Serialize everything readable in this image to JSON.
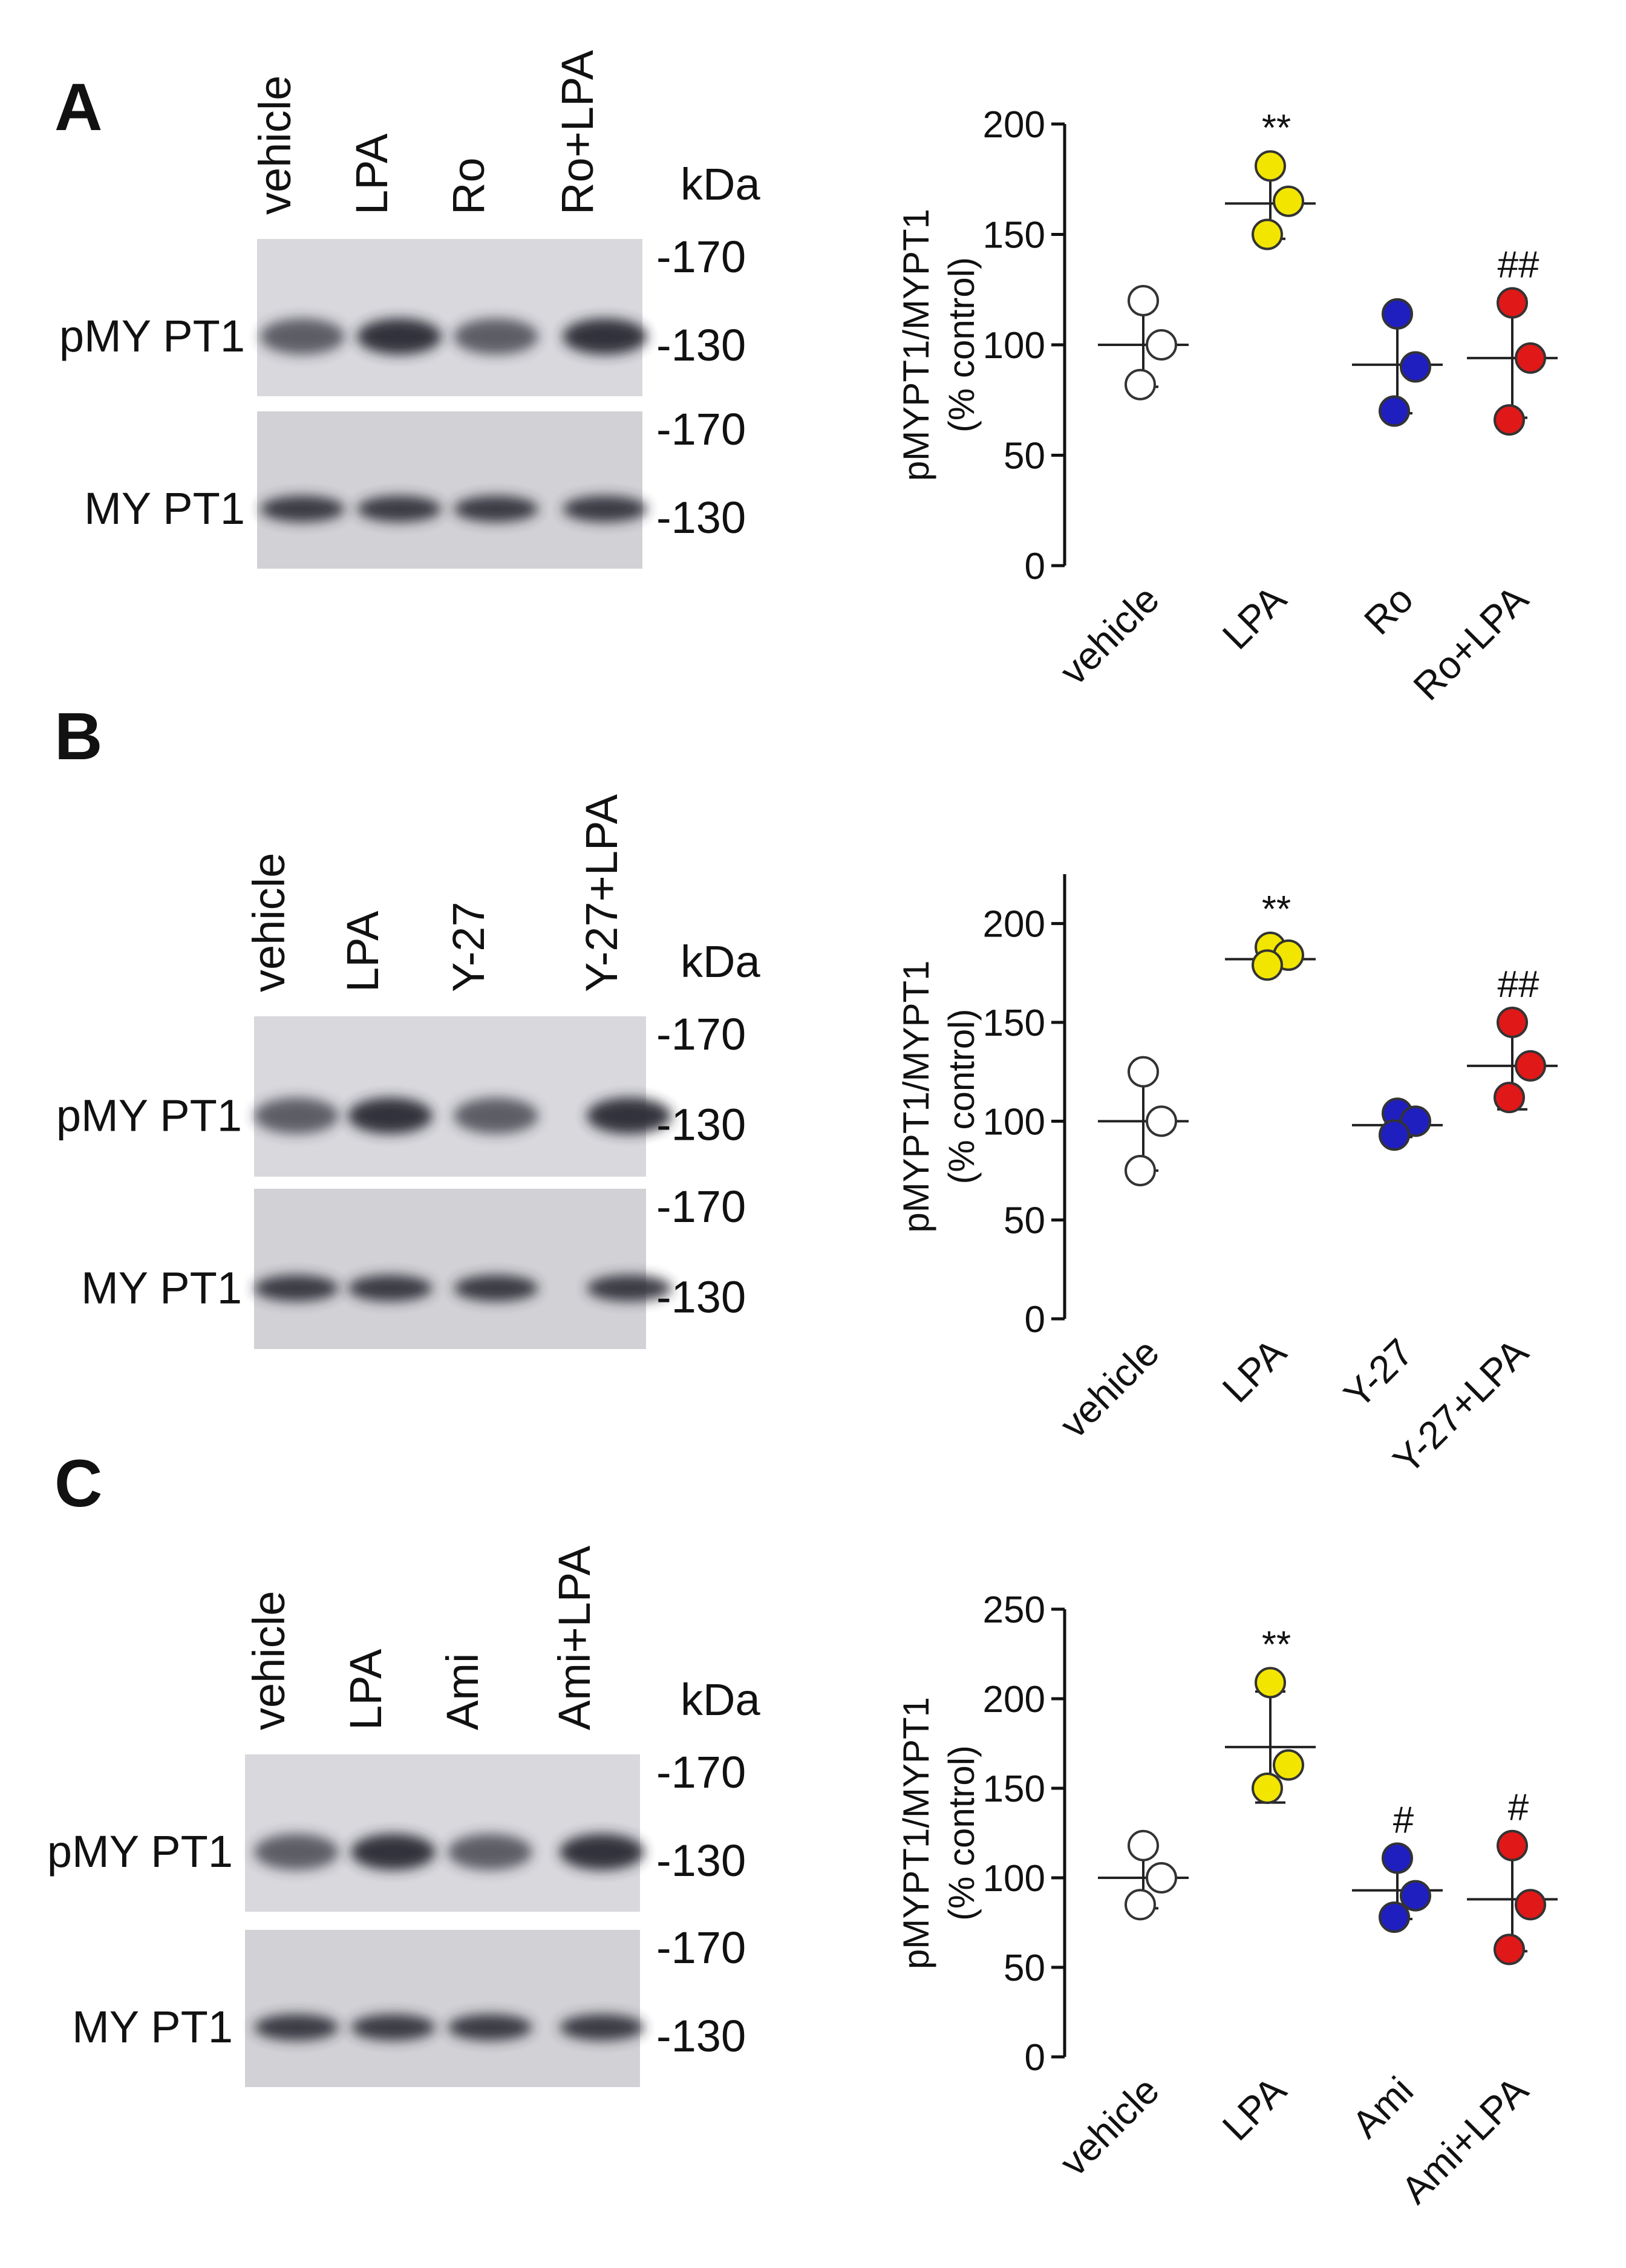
{
  "panels": [
    {
      "letter": "A",
      "lanes": [
        "vehicle",
        "LPA",
        "Ro",
        "Ro+LPA"
      ],
      "blot_rows": [
        "pMY PT1",
        "MY PT1"
      ],
      "kda_label": "kDa",
      "markers": [
        "-170",
        "-130"
      ],
      "chart_data": {
        "type": "scatter",
        "ylabel_lines": [
          "pMYPT1/MYPT1",
          "(% control)"
        ],
        "ylim": [
          0,
          200
        ],
        "yticks": [
          0,
          50,
          100,
          150,
          200
        ],
        "categories": [
          "vehicle",
          "LPA",
          "Ro",
          "Ro+LPA"
        ],
        "groups": [
          {
            "category": "vehicle",
            "color": "#ffffff",
            "points": [
              120,
              100,
              82
            ],
            "mean": 100,
            "sd": 19,
            "sig": ""
          },
          {
            "category": "LPA",
            "color": "#f2e600",
            "points": [
              181,
              165,
              150
            ],
            "mean": 164,
            "sd": 16,
            "sig": "**"
          },
          {
            "category": "Ro",
            "color": "#1f1fbf",
            "points": [
              114,
              90,
              70
            ],
            "mean": 91,
            "sd": 22,
            "sig": ""
          },
          {
            "category": "Ro+LPA",
            "color": "#e01818",
            "points": [
              119,
              94,
              66
            ],
            "mean": 94,
            "sd": 27,
            "sig": "##"
          }
        ]
      }
    },
    {
      "letter": "B",
      "lanes": [
        "vehicle",
        "LPA",
        "Y-27",
        "Y-27+LPA"
      ],
      "blot_rows": [
        "pMY PT1",
        "MY PT1"
      ],
      "kda_label": "kDa",
      "markers": [
        "-170",
        "-130"
      ],
      "chart_data": {
        "type": "scatter",
        "ylabel_lines": [
          "pMYPT1/MYPT1",
          "(% control)"
        ],
        "ylim": [
          0,
          225
        ],
        "yticks": [
          0,
          50,
          100,
          150,
          200
        ],
        "categories": [
          "vehicle",
          "LPA",
          "Y-27",
          "Y-27+LPA"
        ],
        "groups": [
          {
            "category": "vehicle",
            "color": "#ffffff",
            "points": [
              125,
              100,
              75
            ],
            "mean": 100,
            "sd": 25,
            "sig": ""
          },
          {
            "category": "LPA",
            "color": "#f2e600",
            "points": [
              188,
              184,
              179
            ],
            "mean": 182,
            "sd": 4,
            "sig": "**"
          },
          {
            "category": "Y-27",
            "color": "#1f1fbf",
            "points": [
              104,
              100,
              93
            ],
            "mean": 98,
            "sd": 6,
            "sig": ""
          },
          {
            "category": "Y-27+LPA",
            "color": "#e01818",
            "points": [
              150,
              128,
              112
            ],
            "mean": 128,
            "sd": 22,
            "sig": "##"
          }
        ]
      }
    },
    {
      "letter": "C",
      "lanes": [
        "vehicle",
        "LPA",
        "Ami",
        "Ami+LPA"
      ],
      "blot_rows": [
        "pMY PT1",
        "MY PT1"
      ],
      "kda_label": "kDa",
      "markers": [
        "-170",
        "-130"
      ],
      "chart_data": {
        "type": "scatter",
        "ylabel_lines": [
          "pMYPT1/MYPT1",
          "(% control)"
        ],
        "ylim": [
          0,
          250
        ],
        "yticks": [
          0,
          50,
          100,
          150,
          200,
          250
        ],
        "categories": [
          "vehicle",
          "LPA",
          "Ami",
          "Ami+LPA"
        ],
        "groups": [
          {
            "category": "vehicle",
            "color": "#ffffff",
            "points": [
              118,
              100,
              85
            ],
            "mean": 100,
            "sd": 17,
            "sig": ""
          },
          {
            "category": "LPA",
            "color": "#f2e600",
            "points": [
              209,
              163,
              150
            ],
            "mean": 173,
            "sd": 31,
            "sig": "**"
          },
          {
            "category": "Ami",
            "color": "#1f1fbf",
            "points": [
              111,
              90,
              78
            ],
            "mean": 93,
            "sd": 16,
            "sig": "#"
          },
          {
            "category": "Ami+LPA",
            "color": "#e01818",
            "points": [
              118,
              85,
              60
            ],
            "mean": 88,
            "sd": 29,
            "sig": "#"
          }
        ]
      }
    }
  ]
}
